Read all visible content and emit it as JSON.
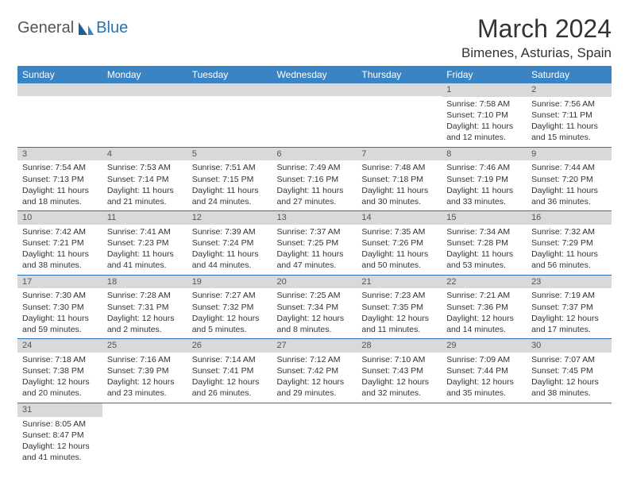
{
  "logo": {
    "general": "General",
    "blue": "Blue"
  },
  "title": "March 2024",
  "location": "Bimenes, Asturias, Spain",
  "colors": {
    "header_bg": "#3b84c4",
    "accent": "#2a72b5",
    "daynum_bg": "#d9d9d9",
    "text": "#333333",
    "page_bg": "#ffffff"
  },
  "typography": {
    "title_fontsize": 32,
    "location_fontsize": 17,
    "header_fontsize": 12,
    "cell_fontsize": 10.5,
    "daynum_fontsize": 11
  },
  "day_headers": [
    "Sunday",
    "Monday",
    "Tuesday",
    "Wednesday",
    "Thursday",
    "Friday",
    "Saturday"
  ],
  "weeks": [
    [
      null,
      null,
      null,
      null,
      null,
      {
        "n": "1",
        "sr": "Sunrise: 7:58 AM",
        "ss": "Sunset: 7:10 PM",
        "d1": "Daylight: 11 hours",
        "d2": "and 12 minutes."
      },
      {
        "n": "2",
        "sr": "Sunrise: 7:56 AM",
        "ss": "Sunset: 7:11 PM",
        "d1": "Daylight: 11 hours",
        "d2": "and 15 minutes."
      }
    ],
    [
      {
        "n": "3",
        "sr": "Sunrise: 7:54 AM",
        "ss": "Sunset: 7:13 PM",
        "d1": "Daylight: 11 hours",
        "d2": "and 18 minutes."
      },
      {
        "n": "4",
        "sr": "Sunrise: 7:53 AM",
        "ss": "Sunset: 7:14 PM",
        "d1": "Daylight: 11 hours",
        "d2": "and 21 minutes."
      },
      {
        "n": "5",
        "sr": "Sunrise: 7:51 AM",
        "ss": "Sunset: 7:15 PM",
        "d1": "Daylight: 11 hours",
        "d2": "and 24 minutes."
      },
      {
        "n": "6",
        "sr": "Sunrise: 7:49 AM",
        "ss": "Sunset: 7:16 PM",
        "d1": "Daylight: 11 hours",
        "d2": "and 27 minutes."
      },
      {
        "n": "7",
        "sr": "Sunrise: 7:48 AM",
        "ss": "Sunset: 7:18 PM",
        "d1": "Daylight: 11 hours",
        "d2": "and 30 minutes."
      },
      {
        "n": "8",
        "sr": "Sunrise: 7:46 AM",
        "ss": "Sunset: 7:19 PM",
        "d1": "Daylight: 11 hours",
        "d2": "and 33 minutes."
      },
      {
        "n": "9",
        "sr": "Sunrise: 7:44 AM",
        "ss": "Sunset: 7:20 PM",
        "d1": "Daylight: 11 hours",
        "d2": "and 36 minutes."
      }
    ],
    [
      {
        "n": "10",
        "sr": "Sunrise: 7:42 AM",
        "ss": "Sunset: 7:21 PM",
        "d1": "Daylight: 11 hours",
        "d2": "and 38 minutes."
      },
      {
        "n": "11",
        "sr": "Sunrise: 7:41 AM",
        "ss": "Sunset: 7:23 PM",
        "d1": "Daylight: 11 hours",
        "d2": "and 41 minutes."
      },
      {
        "n": "12",
        "sr": "Sunrise: 7:39 AM",
        "ss": "Sunset: 7:24 PM",
        "d1": "Daylight: 11 hours",
        "d2": "and 44 minutes."
      },
      {
        "n": "13",
        "sr": "Sunrise: 7:37 AM",
        "ss": "Sunset: 7:25 PM",
        "d1": "Daylight: 11 hours",
        "d2": "and 47 minutes."
      },
      {
        "n": "14",
        "sr": "Sunrise: 7:35 AM",
        "ss": "Sunset: 7:26 PM",
        "d1": "Daylight: 11 hours",
        "d2": "and 50 minutes."
      },
      {
        "n": "15",
        "sr": "Sunrise: 7:34 AM",
        "ss": "Sunset: 7:28 PM",
        "d1": "Daylight: 11 hours",
        "d2": "and 53 minutes."
      },
      {
        "n": "16",
        "sr": "Sunrise: 7:32 AM",
        "ss": "Sunset: 7:29 PM",
        "d1": "Daylight: 11 hours",
        "d2": "and 56 minutes."
      }
    ],
    [
      {
        "n": "17",
        "sr": "Sunrise: 7:30 AM",
        "ss": "Sunset: 7:30 PM",
        "d1": "Daylight: 11 hours",
        "d2": "and 59 minutes."
      },
      {
        "n": "18",
        "sr": "Sunrise: 7:28 AM",
        "ss": "Sunset: 7:31 PM",
        "d1": "Daylight: 12 hours",
        "d2": "and 2 minutes."
      },
      {
        "n": "19",
        "sr": "Sunrise: 7:27 AM",
        "ss": "Sunset: 7:32 PM",
        "d1": "Daylight: 12 hours",
        "d2": "and 5 minutes."
      },
      {
        "n": "20",
        "sr": "Sunrise: 7:25 AM",
        "ss": "Sunset: 7:34 PM",
        "d1": "Daylight: 12 hours",
        "d2": "and 8 minutes."
      },
      {
        "n": "21",
        "sr": "Sunrise: 7:23 AM",
        "ss": "Sunset: 7:35 PM",
        "d1": "Daylight: 12 hours",
        "d2": "and 11 minutes."
      },
      {
        "n": "22",
        "sr": "Sunrise: 7:21 AM",
        "ss": "Sunset: 7:36 PM",
        "d1": "Daylight: 12 hours",
        "d2": "and 14 minutes."
      },
      {
        "n": "23",
        "sr": "Sunrise: 7:19 AM",
        "ss": "Sunset: 7:37 PM",
        "d1": "Daylight: 12 hours",
        "d2": "and 17 minutes."
      }
    ],
    [
      {
        "n": "24",
        "sr": "Sunrise: 7:18 AM",
        "ss": "Sunset: 7:38 PM",
        "d1": "Daylight: 12 hours",
        "d2": "and 20 minutes."
      },
      {
        "n": "25",
        "sr": "Sunrise: 7:16 AM",
        "ss": "Sunset: 7:39 PM",
        "d1": "Daylight: 12 hours",
        "d2": "and 23 minutes."
      },
      {
        "n": "26",
        "sr": "Sunrise: 7:14 AM",
        "ss": "Sunset: 7:41 PM",
        "d1": "Daylight: 12 hours",
        "d2": "and 26 minutes."
      },
      {
        "n": "27",
        "sr": "Sunrise: 7:12 AM",
        "ss": "Sunset: 7:42 PM",
        "d1": "Daylight: 12 hours",
        "d2": "and 29 minutes."
      },
      {
        "n": "28",
        "sr": "Sunrise: 7:10 AM",
        "ss": "Sunset: 7:43 PM",
        "d1": "Daylight: 12 hours",
        "d2": "and 32 minutes."
      },
      {
        "n": "29",
        "sr": "Sunrise: 7:09 AM",
        "ss": "Sunset: 7:44 PM",
        "d1": "Daylight: 12 hours",
        "d2": "and 35 minutes."
      },
      {
        "n": "30",
        "sr": "Sunrise: 7:07 AM",
        "ss": "Sunset: 7:45 PM",
        "d1": "Daylight: 12 hours",
        "d2": "and 38 minutes."
      }
    ],
    [
      {
        "n": "31",
        "sr": "Sunrise: 8:05 AM",
        "ss": "Sunset: 8:47 PM",
        "d1": "Daylight: 12 hours",
        "d2": "and 41 minutes."
      },
      null,
      null,
      null,
      null,
      null,
      null
    ]
  ]
}
